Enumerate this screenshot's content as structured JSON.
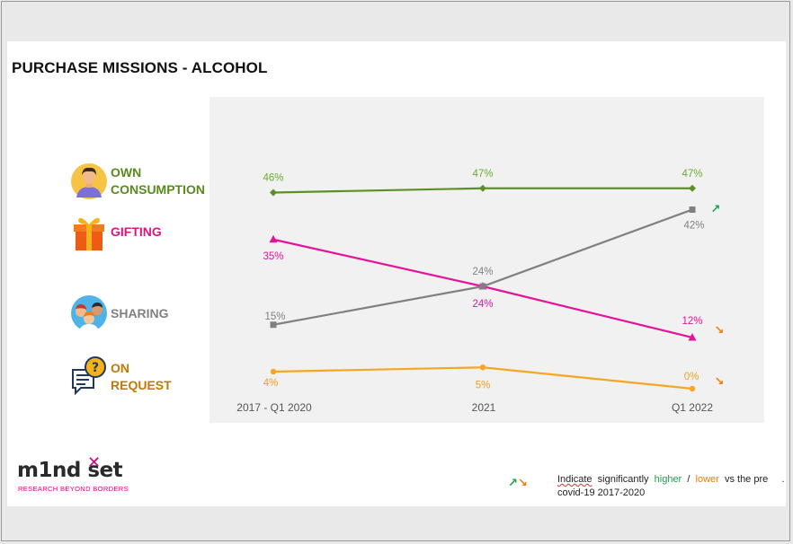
{
  "title": "PURCHASE MISSIONS - ALCOHOL",
  "categories": [
    {
      "label_lines": [
        "OWN",
        "CONSUMPTION"
      ],
      "color": "#5a8a1e",
      "icon": "person-icon"
    },
    {
      "label_lines": [
        "GIFTING"
      ],
      "color": "#e0147f",
      "icon": "gift-icon"
    },
    {
      "label_lines": [
        "SHARING"
      ],
      "color": "#808080",
      "icon": "group-icon"
    },
    {
      "label_lines": [
        "ON",
        "REQUEST"
      ],
      "color": "#c07a00",
      "icon": "question-bubble-icon"
    }
  ],
  "chart_data": {
    "type": "line",
    "categories": [
      "2017 - Q1 2020",
      "2021",
      "Q1 2022"
    ],
    "series": [
      {
        "name": "OWN CONSUMPTION",
        "values": [
          46,
          47,
          47
        ],
        "labels": [
          "46%",
          "47%",
          "47%"
        ],
        "color": "#5b9124",
        "label_color": "#6aab2e",
        "marker": "diamond",
        "trend": null
      },
      {
        "name": "GIFTING",
        "values": [
          35,
          24,
          12
        ],
        "labels": [
          "35%",
          "24%",
          "12%"
        ],
        "color": "#e5129b",
        "label_color": "#e5129b",
        "marker": "triangle",
        "trend": "down"
      },
      {
        "name": "SHARING",
        "values": [
          15,
          24,
          42
        ],
        "labels": [
          "15%",
          "24%",
          "42%"
        ],
        "color": "#808080",
        "label_color": "#808080",
        "marker": "square",
        "trend": "up"
      },
      {
        "name": "ON REQUEST",
        "values": [
          4,
          5,
          0
        ],
        "labels": [
          "4%",
          "5%",
          "0%"
        ],
        "color": "#f5a623",
        "label_color": "#f0a020",
        "marker": "circle",
        "trend": "down"
      }
    ],
    "grid": false
  },
  "trend_colors": {
    "up": "#19a34a",
    "down": "#f07d00"
  },
  "logo": {
    "word": "m1nd set",
    "tagline": "RESEARCH BEYOND BORDERS"
  },
  "legend": {
    "up_arrow": "↗",
    "down_arrow": "↘",
    "indicate": "Indicate",
    "significantly": "significantly",
    "higher": "higher",
    "sep": "/",
    "lower": "lower",
    "vs_the_pre": "vs the pre",
    "dot": ".",
    "line2": "covid-19 2017-2020"
  }
}
